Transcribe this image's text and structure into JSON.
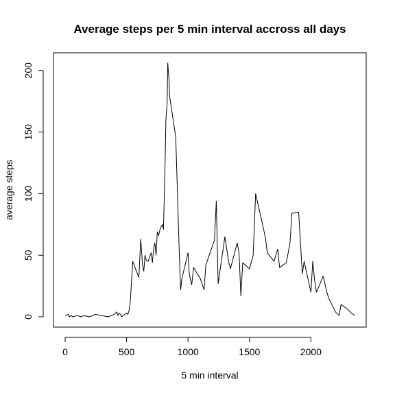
{
  "chart_data": {
    "type": "line",
    "title": "Average steps per 5 min interval accross all days",
    "xlabel": "5 min interval",
    "ylabel": "average steps",
    "xlim": [
      0,
      2355
    ],
    "ylim": [
      0,
      206
    ],
    "x_ticks": [
      0,
      500,
      1000,
      1500,
      2000
    ],
    "y_ticks": [
      0,
      50,
      100,
      150,
      200
    ],
    "grid": false,
    "series": [
      {
        "name": "average steps",
        "x": [
          0,
          25,
          35,
          50,
          60,
          100,
          130,
          150,
          200,
          245,
          300,
          350,
          400,
          420,
          430,
          440,
          450,
          460,
          500,
          510,
          520,
          530,
          550,
          600,
          615,
          630,
          640,
          650,
          660,
          675,
          700,
          710,
          720,
          730,
          740,
          750,
          760,
          775,
          790,
          800,
          810,
          820,
          830,
          835,
          845,
          850,
          900,
          930,
          940,
          950,
          1000,
          1010,
          1020,
          1030,
          1045,
          1100,
          1130,
          1145,
          1200,
          1215,
          1230,
          1245,
          1300,
          1330,
          1345,
          1400,
          1415,
          1430,
          1445,
          1500,
          1530,
          1550,
          1600,
          1630,
          1645,
          1700,
          1730,
          1745,
          1800,
          1830,
          1845,
          1900,
          1930,
          1945,
          2000,
          2015,
          2030,
          2045,
          2100,
          2130,
          2145,
          2200,
          2230,
          2245,
          2300,
          2330,
          2345,
          2355
        ],
        "y": [
          1,
          2,
          0,
          1,
          0,
          1,
          0,
          1,
          0,
          2,
          1,
          0,
          2,
          4,
          1,
          3,
          2,
          0,
          3,
          2,
          5,
          12,
          45,
          32,
          63,
          42,
          37,
          50,
          46,
          45,
          52,
          44,
          55,
          60,
          50,
          69,
          66,
          72,
          75,
          71,
          110,
          160,
          174,
          206,
          193,
          179,
          146,
          48,
          22,
          31,
          52,
          35,
          30,
          26,
          40,
          31,
          22,
          42,
          58,
          62,
          94,
          27,
          65,
          45,
          39,
          60,
          52,
          17,
          44,
          39,
          50,
          100,
          78,
          64,
          52,
          45,
          55,
          40,
          44,
          60,
          84,
          85,
          35,
          45,
          20,
          45,
          30,
          20,
          33,
          20,
          15,
          4,
          1,
          10,
          6,
          3,
          2,
          1
        ]
      }
    ]
  }
}
